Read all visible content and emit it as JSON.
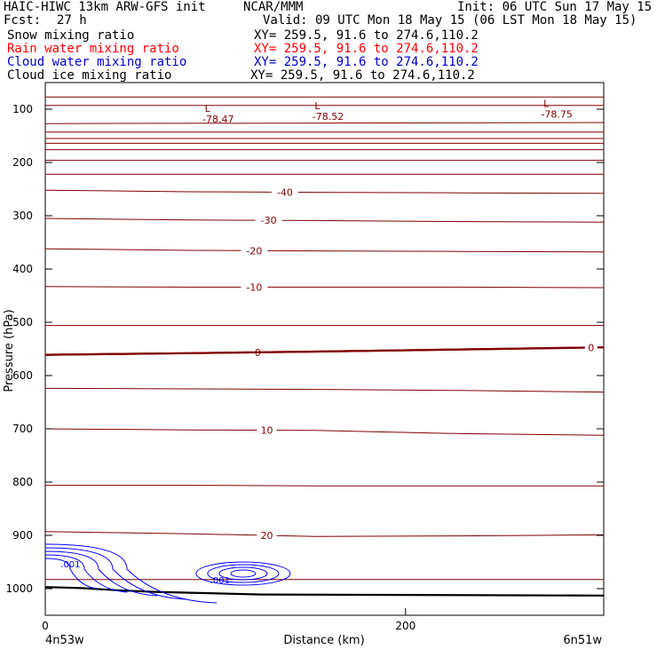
{
  "header": {
    "model": "HAIC-HIWC 13km ARW-GFS init",
    "org": "NCAR/MMM",
    "init": "Init: 06 UTC Sun 17 May 15",
    "fcst_label": "Fcst:",
    "fcst_value": "27 h",
    "valid": "Valid: 09 UTC Mon 18 May 15 (06 LST Mon 18 May 15)"
  },
  "fields": [
    {
      "name": "Snow mixing ratio",
      "xy": "XY= 259.5, 91.6 to 274.6,110.2",
      "color": "#000000"
    },
    {
      "name": "Rain water mixing ratio",
      "xy": "XY= 259.5, 91.6 to 274.6,110.2",
      "color": "#ff0000"
    },
    {
      "name": "Cloud water mixing ratio",
      "xy": "XY= 259.5, 91.6 to 274.6,110.2",
      "color": "#0000cc"
    },
    {
      "name": "Cloud ice mixing ratio",
      "xy": "XY= 259.5, 91.6 to 274.6,110.2",
      "color": "#000000"
    }
  ],
  "chart_data": {
    "type": "line",
    "xlabel": "Distance (km)",
    "ylabel": "Pressure (hPa)",
    "xlim": [
      0,
      310
    ],
    "ylim": [
      1050,
      50
    ],
    "x_ticks": [
      0,
      200
    ],
    "y_ticks": [
      100,
      200,
      300,
      400,
      500,
      600,
      700,
      800,
      900,
      1000
    ],
    "x_endpoint_labels": {
      "left": "4n53w",
      "right": "6n51w"
    },
    "temperature_color": "#800000",
    "cloud_color": "#0000ff",
    "temperature_contours": [
      {
        "label": "-40",
        "x": [
          0,
          80,
          150,
          230,
          310
        ],
        "y": [
          252,
          255,
          256,
          257,
          258
        ],
        "label_x": 133
      },
      {
        "label": "-30",
        "x": [
          0,
          80,
          150,
          230,
          310
        ],
        "y": [
          305,
          308,
          309,
          311,
          312
        ],
        "label_x": 124
      },
      {
        "label": "-20",
        "x": [
          0,
          80,
          150,
          230,
          310
        ],
        "y": [
          362,
          365,
          366,
          367,
          368
        ],
        "label_x": 116
      },
      {
        "label": "-10",
        "x": [
          0,
          80,
          150,
          230,
          310
        ],
        "y": [
          433,
          434,
          434,
          434,
          435
        ],
        "label_x": 116
      },
      {
        "label": "0",
        "x": [
          0,
          80,
          150,
          230,
          310
        ],
        "y": [
          561,
          558,
          555,
          551,
          547
        ],
        "label_x": 118,
        "bold": true
      },
      {
        "label": "0",
        "x": [
          0,
          80,
          150,
          230,
          310
        ],
        "y": [
          561,
          558,
          555,
          551,
          547
        ],
        "label_x": 303,
        "bold": true
      },
      {
        "label": "10",
        "x": [
          0,
          80,
          150,
          230,
          310
        ],
        "y": [
          700,
          702,
          703,
          709,
          712
        ],
        "label_x": 123
      },
      {
        "label": "20",
        "x": [
          0,
          80,
          150,
          230,
          310
        ],
        "y": [
          893,
          897,
          902,
          901,
          899
        ],
        "label_x": 123
      }
    ],
    "unlabeled_temperature_levels": [
      {
        "x": [
          0,
          310
        ],
        "y": [
          77,
          77
        ]
      },
      {
        "x": [
          0,
          310
        ],
        "y": [
          93,
          93
        ]
      },
      {
        "x": [
          0,
          310
        ],
        "y": [
          127,
          125
        ]
      },
      {
        "x": [
          0,
          310
        ],
        "y": [
          143,
          143
        ]
      },
      {
        "x": [
          0,
          310
        ],
        "y": [
          155,
          155
        ]
      },
      {
        "x": [
          0,
          310
        ],
        "y": [
          164,
          164
        ]
      },
      {
        "x": [
          0,
          310
        ],
        "y": [
          176,
          176
        ]
      },
      {
        "x": [
          0,
          310
        ],
        "y": [
          196,
          196
        ]
      },
      {
        "x": [
          0,
          310
        ],
        "y": [
          222,
          222
        ]
      },
      {
        "x": [
          0,
          80,
          150,
          230,
          310
        ],
        "y": [
          506,
          506,
          506,
          506,
          506
        ]
      },
      {
        "x": [
          0,
          80,
          150,
          230,
          310
        ],
        "y": [
          624,
          625,
          626,
          628,
          631
        ]
      },
      {
        "x": [
          0,
          80,
          150,
          230,
          310
        ],
        "y": [
          806,
          806,
          807,
          807,
          807
        ]
      },
      {
        "x": [
          0,
          310
        ],
        "y": [
          983,
          983
        ]
      }
    ],
    "minima": [
      {
        "marker": "L",
        "value": "-78.47",
        "x": 94,
        "y": 108
      },
      {
        "marker": "L",
        "value": "-78.52",
        "x": 155,
        "y": 103
      },
      {
        "marker": "L",
        "value": "-78.75",
        "x": 282,
        "y": 99
      }
    ],
    "cloud_labels": [
      {
        "text": ".001",
        "x": 14,
        "y": 960
      },
      {
        "text": ".001",
        "x": 97,
        "y": 990
      }
    ],
    "terrain": {
      "x": [
        0,
        20,
        40,
        60,
        120,
        310
      ],
      "y": [
        997,
        999,
        1003,
        1006,
        1011,
        1013
      ]
    }
  }
}
